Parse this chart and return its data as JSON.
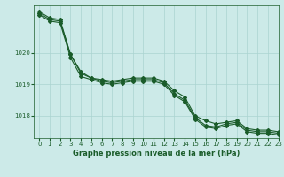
{
  "title": "Graphe pression niveau de la mer (hPa)",
  "background_color": "#cceae8",
  "grid_color": "#aad4d0",
  "line_color": "#1a5c2a",
  "xlim": [
    -0.5,
    23
  ],
  "ylim": [
    1017.3,
    1021.5
  ],
  "yticks": [
    1018,
    1019,
    1020
  ],
  "xtick_labels": [
    "0",
    "1",
    "2",
    "3",
    "4",
    "5",
    "6",
    "7",
    "8",
    "9",
    "10",
    "11",
    "12",
    "13",
    "14",
    "15",
    "16",
    "17",
    "18",
    "19",
    "20",
    "21",
    "22",
    "23"
  ],
  "series": [
    [
      1021.3,
      1021.1,
      1021.05,
      1019.95,
      1019.4,
      1019.2,
      1019.15,
      1019.1,
      1019.15,
      1019.2,
      1019.2,
      1019.2,
      1019.1,
      1018.8,
      1018.6,
      1018.0,
      1017.85,
      1017.75,
      1017.8,
      1017.85,
      1017.6,
      1017.55,
      1017.55,
      1017.5
    ],
    [
      1021.25,
      1021.05,
      1021.0,
      1019.95,
      1019.35,
      1019.2,
      1019.1,
      1019.05,
      1019.1,
      1019.15,
      1019.15,
      1019.15,
      1019.05,
      1018.7,
      1018.5,
      1017.95,
      1017.7,
      1017.65,
      1017.75,
      1017.8,
      1017.55,
      1017.5,
      1017.5,
      1017.45
    ],
    [
      1021.2,
      1021.0,
      1020.95,
      1019.85,
      1019.25,
      1019.15,
      1019.05,
      1019.0,
      1019.05,
      1019.1,
      1019.1,
      1019.1,
      1019.0,
      1018.65,
      1018.45,
      1017.9,
      1017.65,
      1017.6,
      1017.7,
      1017.75,
      1017.5,
      1017.45,
      1017.45,
      1017.4
    ]
  ],
  "marker": "D",
  "markersize": 2.0,
  "linewidth": 0.8,
  "tick_fontsize": 5,
  "label_fontsize": 6,
  "xlabel_fontsize": 6
}
